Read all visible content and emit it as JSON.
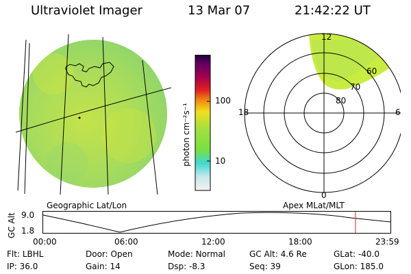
{
  "header": {
    "title": "Ultraviolet Imager",
    "date": "13 Mar 07",
    "time": "21:42:22 UT"
  },
  "colorbar": {
    "label": "photon cm⁻²s⁻¹",
    "ticks": [
      {
        "value": 100,
        "label": "100"
      },
      {
        "value": 10,
        "label": "10"
      }
    ]
  },
  "left_panel": {
    "caption": "Geographic Lat/Lon"
  },
  "polar_panel": {
    "caption": "Apex MLat/MLT",
    "mlt_labels": {
      "top": "12",
      "left": "18",
      "right": "6",
      "bottom": "0"
    },
    "lat_labels": [
      "60",
      "70",
      "80"
    ]
  },
  "altitude_plot": {
    "ylabel": "GC Alt",
    "yticks": [
      "9.0",
      "1.8"
    ],
    "xticks": [
      "00:00",
      "06:00",
      "12:00",
      "18:00",
      "23:59"
    ]
  },
  "footer": {
    "row1": [
      {
        "label": "Flt:",
        "value": "LBHL"
      },
      {
        "label": "Door:",
        "value": "Open"
      },
      {
        "label": "Mode:",
        "value": "Normal"
      },
      {
        "label": "GC Alt:",
        "value": "4.6 Re"
      },
      {
        "label": "GLat:",
        "value": "-40.0"
      }
    ],
    "row2": [
      {
        "label": "IP:",
        "value": "36.0"
      },
      {
        "label": "Gain:",
        "value": "14"
      },
      {
        "label": "Dsp:",
        "value": "-8.3"
      },
      {
        "label": "Seq:",
        "value": "39"
      },
      {
        "label": "GLon:",
        "value": "185.0"
      }
    ]
  },
  "colors": {
    "image_base": "#b8e05a",
    "aurora": "#c8ec40",
    "marker": "#e02020"
  }
}
